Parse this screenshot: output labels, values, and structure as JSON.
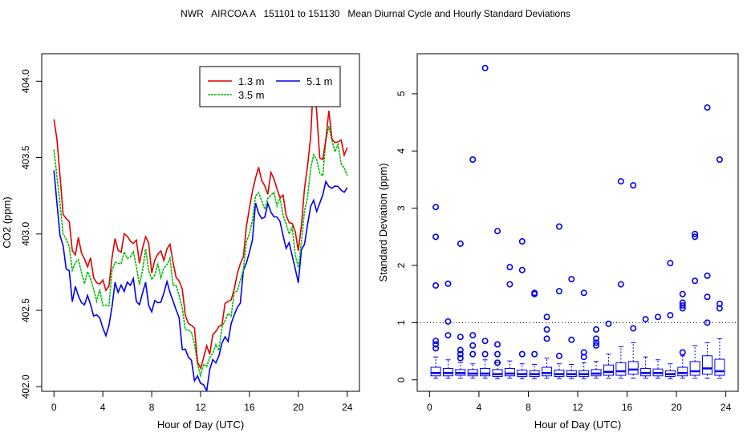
{
  "title": "NWR   AIRCOA A   151101 to 151130   Mean Diurnal Cycle and Hourly Standard Deviations",
  "colors": {
    "red": "#e00000",
    "green": "#00bb00",
    "blue": "#0000ee",
    "axis": "#000000"
  },
  "chart_data": [
    {
      "type": "line",
      "title": "",
      "xlabel": "Hour of Day (UTC)",
      "ylabel": "CO2 (ppm)",
      "xlim": [
        -1,
        25
      ],
      "ylim": [
        401.97,
        404.18
      ],
      "xticks": [
        "0",
        "4",
        "8",
        "12",
        "16",
        "20",
        "24"
      ],
      "yticks": [
        "402.0",
        "402.5",
        "403.0",
        "403.5",
        "404.0"
      ],
      "legend": {
        "position": "top-right",
        "entries": [
          "1.3 m",
          "3.5 m",
          "5.1 m"
        ]
      },
      "series": [
        {
          "name": "1.3 m",
          "color": "#e00000",
          "knots": [
            [
              0,
              403.75
            ],
            [
              0.3,
              403.55
            ],
            [
              0.6,
              403.3
            ],
            [
              0.9,
              403.05
            ],
            [
              1.2,
              403.1
            ],
            [
              1.5,
              402.9
            ],
            [
              2,
              402.92
            ],
            [
              2.5,
              402.85
            ],
            [
              3,
              402.78
            ],
            [
              3.5,
              402.7
            ],
            [
              4,
              402.65
            ],
            [
              4.5,
              402.68
            ],
            [
              5,
              402.95
            ],
            [
              5.5,
              402.9
            ],
            [
              6,
              403.0
            ],
            [
              6.5,
              402.95
            ],
            [
              7,
              402.85
            ],
            [
              7.5,
              402.98
            ],
            [
              8,
              402.8
            ],
            [
              8.5,
              402.85
            ],
            [
              9,
              402.88
            ],
            [
              9.5,
              402.9
            ],
            [
              10,
              402.75
            ],
            [
              10.5,
              402.6
            ],
            [
              11,
              402.42
            ],
            [
              11.5,
              402.35
            ],
            [
              12,
              402.1
            ],
            [
              12.5,
              402.25
            ],
            [
              13,
              402.3
            ],
            [
              13.5,
              402.4
            ],
            [
              14,
              402.5
            ],
            [
              14.5,
              402.6
            ],
            [
              15,
              402.7
            ],
            [
              15.5,
              402.9
            ],
            [
              16,
              403.15
            ],
            [
              16.5,
              403.42
            ],
            [
              17,
              403.35
            ],
            [
              17.5,
              403.3
            ],
            [
              18,
              403.38
            ],
            [
              18.5,
              403.25
            ],
            [
              19,
              403.15
            ],
            [
              19.5,
              403.05
            ],
            [
              20,
              402.92
            ],
            [
              20.5,
              403.25
            ],
            [
              21,
              403.65
            ],
            [
              21.3,
              404.12
            ],
            [
              21.6,
              403.55
            ],
            [
              22,
              403.5
            ],
            [
              22.5,
              403.75
            ],
            [
              23,
              403.6
            ],
            [
              23.5,
              403.58
            ],
            [
              24,
              403.56
            ]
          ],
          "x": [],
          "values": []
        },
        {
          "name": "3.5 m",
          "color": "#00bb00",
          "knots": [
            [
              0,
              403.5
            ],
            [
              0.3,
              403.35
            ],
            [
              0.6,
              403.15
            ],
            [
              0.9,
              402.9
            ],
            [
              1.2,
              402.95
            ],
            [
              1.5,
              402.8
            ],
            [
              2,
              402.8
            ],
            [
              2.5,
              402.72
            ],
            [
              3,
              402.7
            ],
            [
              3.5,
              402.6
            ],
            [
              4,
              402.55
            ],
            [
              4.5,
              402.55
            ],
            [
              5,
              402.85
            ],
            [
              5.5,
              402.8
            ],
            [
              6,
              402.88
            ],
            [
              6.5,
              402.85
            ],
            [
              7,
              402.7
            ],
            [
              7.5,
              402.85
            ],
            [
              8,
              402.72
            ],
            [
              8.5,
              402.75
            ],
            [
              9,
              402.78
            ],
            [
              9.5,
              402.8
            ],
            [
              10,
              402.65
            ],
            [
              10.5,
              402.5
            ],
            [
              11,
              402.35
            ],
            [
              11.5,
              402.3
            ],
            [
              12,
              402.05
            ],
            [
              12.5,
              402.18
            ],
            [
              13,
              402.2
            ],
            [
              13.5,
              402.3
            ],
            [
              14,
              402.42
            ],
            [
              14.5,
              402.52
            ],
            [
              15,
              402.62
            ],
            [
              15.5,
              402.8
            ],
            [
              16,
              403.0
            ],
            [
              16.5,
              403.25
            ],
            [
              17,
              403.22
            ],
            [
              17.5,
              403.2
            ],
            [
              18,
              403.28
            ],
            [
              18.5,
              403.18
            ],
            [
              19,
              403.08
            ],
            [
              19.5,
              402.98
            ],
            [
              20,
              402.8
            ],
            [
              20.5,
              403.1
            ],
            [
              21,
              403.45
            ],
            [
              21.3,
              403.5
            ],
            [
              21.6,
              403.45
            ],
            [
              22,
              403.4
            ],
            [
              22.5,
              403.72
            ],
            [
              23,
              403.55
            ],
            [
              23.5,
              403.5
            ],
            [
              24,
              403.38
            ]
          ],
          "x": [],
          "values": []
        },
        {
          "name": "5.1 m",
          "color": "#0000ee",
          "knots": [
            [
              0,
              403.4
            ],
            [
              0.3,
              403.15
            ],
            [
              0.6,
              403.0
            ],
            [
              0.9,
              402.75
            ],
            [
              1.2,
              402.8
            ],
            [
              1.5,
              402.6
            ],
            [
              2,
              402.6
            ],
            [
              2.5,
              402.55
            ],
            [
              3,
              402.55
            ],
            [
              3.5,
              402.45
            ],
            [
              4,
              402.4
            ],
            [
              4.5,
              402.35
            ],
            [
              5,
              402.7
            ],
            [
              5.5,
              402.6
            ],
            [
              6,
              402.7
            ],
            [
              6.5,
              402.65
            ],
            [
              7,
              402.55
            ],
            [
              7.5,
              402.65
            ],
            [
              8,
              402.5
            ],
            [
              8.5,
              402.55
            ],
            [
              9,
              402.62
            ],
            [
              9.5,
              402.65
            ],
            [
              10,
              402.5
            ],
            [
              10.5,
              402.3
            ],
            [
              11,
              402.18
            ],
            [
              11.5,
              402.1
            ],
            [
              12,
              402.0
            ],
            [
              12.5,
              402.02
            ],
            [
              13,
              402.15
            ],
            [
              13.5,
              402.22
            ],
            [
              14,
              402.3
            ],
            [
              14.5,
              402.4
            ],
            [
              15,
              402.5
            ],
            [
              15.5,
              402.72
            ],
            [
              16,
              402.88
            ],
            [
              16.5,
              403.15
            ],
            [
              17,
              403.12
            ],
            [
              17.5,
              403.15
            ],
            [
              18,
              403.15
            ],
            [
              18.5,
              403.05
            ],
            [
              19,
              402.95
            ],
            [
              19.5,
              402.85
            ],
            [
              20,
              402.72
            ],
            [
              20.5,
              402.95
            ],
            [
              21,
              403.2
            ],
            [
              21.3,
              403.15
            ],
            [
              21.6,
              403.2
            ],
            [
              22,
              403.25
            ],
            [
              22.5,
              403.35
            ],
            [
              23,
              403.28
            ],
            [
              23.5,
              403.32
            ],
            [
              24,
              403.25
            ]
          ],
          "x": [],
          "values": []
        }
      ]
    },
    {
      "type": "box",
      "title": "",
      "xlabel": "Hour of Day (UTC)",
      "ylabel": "Standard Deviation (ppm)",
      "xlim": [
        -1,
        25
      ],
      "ylim": [
        -0.2,
        5.7
      ],
      "xticks": [
        "0",
        "4",
        "8",
        "12",
        "16",
        "20",
        "24"
      ],
      "yticks": [
        "0",
        "1",
        "2",
        "3",
        "4",
        "5"
      ],
      "reference_line": 1,
      "box_color": "#0000ee",
      "boxes": [
        {
          "x": 0.5,
          "q1": 0.07,
          "median": 0.12,
          "q3": 0.22,
          "whisker_low": 0.03,
          "whisker_high": 0.4,
          "outliers": [
            0.55,
            0.62,
            0.68,
            1.65,
            2.5,
            3.02
          ]
        },
        {
          "x": 1.5,
          "q1": 0.07,
          "median": 0.12,
          "q3": 0.2,
          "whisker_low": 0.03,
          "whisker_high": 0.35,
          "outliers": [
            0.78,
            1.02,
            1.68
          ]
        },
        {
          "x": 2.5,
          "q1": 0.08,
          "median": 0.12,
          "q3": 0.18,
          "whisker_low": 0.03,
          "whisker_high": 0.3,
          "outliers": [
            0.38,
            0.45,
            0.52,
            0.75,
            2.38
          ]
        },
        {
          "x": 3.5,
          "q1": 0.07,
          "median": 0.11,
          "q3": 0.18,
          "whisker_low": 0.03,
          "whisker_high": 0.28,
          "outliers": [
            0.45,
            0.6,
            0.78,
            3.85
          ]
        },
        {
          "x": 4.5,
          "q1": 0.07,
          "median": 0.11,
          "q3": 0.2,
          "whisker_low": 0.03,
          "whisker_high": 0.35,
          "outliers": [
            0.45,
            0.68,
            5.45
          ]
        },
        {
          "x": 5.5,
          "q1": 0.06,
          "median": 0.1,
          "q3": 0.18,
          "whisker_low": 0.02,
          "whisker_high": 0.3,
          "outliers": [
            0.3,
            0.45,
            0.62,
            2.6
          ]
        },
        {
          "x": 6.5,
          "q1": 0.07,
          "median": 0.11,
          "q3": 0.2,
          "whisker_low": 0.03,
          "whisker_high": 0.33,
          "outliers": [
            1.67,
            1.97
          ]
        },
        {
          "x": 7.5,
          "q1": 0.06,
          "median": 0.1,
          "q3": 0.17,
          "whisker_low": 0.02,
          "whisker_high": 0.28,
          "outliers": [
            0.45,
            1.92,
            2.42
          ]
        },
        {
          "x": 8.5,
          "q1": 0.06,
          "median": 0.1,
          "q3": 0.16,
          "whisker_low": 0.02,
          "whisker_high": 0.27,
          "outliers": [
            0.45,
            1.5,
            1.52
          ]
        },
        {
          "x": 9.5,
          "q1": 0.07,
          "median": 0.12,
          "q3": 0.22,
          "whisker_low": 0.03,
          "whisker_high": 0.38,
          "outliers": [
            0.72,
            0.88,
            1.1
          ]
        },
        {
          "x": 10.5,
          "q1": 0.06,
          "median": 0.1,
          "q3": 0.17,
          "whisker_low": 0.02,
          "whisker_high": 0.28,
          "outliers": [
            0.42,
            1.55,
            2.68
          ]
        },
        {
          "x": 11.5,
          "q1": 0.06,
          "median": 0.1,
          "q3": 0.16,
          "whisker_low": 0.02,
          "whisker_high": 0.27,
          "outliers": [
            0.7,
            1.76
          ]
        },
        {
          "x": 12.5,
          "q1": 0.06,
          "median": 0.1,
          "q3": 0.16,
          "whisker_low": 0.02,
          "whisker_high": 0.3,
          "outliers": [
            0.4,
            0.48,
            1.52
          ]
        },
        {
          "x": 13.5,
          "q1": 0.07,
          "median": 0.11,
          "q3": 0.18,
          "whisker_low": 0.03,
          "whisker_high": 0.32,
          "outliers": [
            0.6,
            0.65,
            0.72,
            0.88
          ]
        },
        {
          "x": 14.5,
          "q1": 0.08,
          "median": 0.14,
          "q3": 0.26,
          "whisker_low": 0.03,
          "whisker_high": 0.45,
          "outliers": [
            0.98
          ]
        },
        {
          "x": 15.5,
          "q1": 0.08,
          "median": 0.15,
          "q3": 0.3,
          "whisker_low": 0.03,
          "whisker_high": 0.58,
          "outliers": [
            1.67,
            3.47
          ]
        },
        {
          "x": 16.5,
          "q1": 0.1,
          "median": 0.18,
          "q3": 0.32,
          "whisker_low": 0.03,
          "whisker_high": 0.65,
          "outliers": [
            0.9,
            3.4
          ]
        },
        {
          "x": 17.5,
          "q1": 0.07,
          "median": 0.12,
          "q3": 0.2,
          "whisker_low": 0.03,
          "whisker_high": 0.4,
          "outliers": [
            1.06
          ]
        },
        {
          "x": 18.5,
          "q1": 0.07,
          "median": 0.12,
          "q3": 0.19,
          "whisker_low": 0.03,
          "whisker_high": 0.35,
          "outliers": [
            1.1
          ]
        },
        {
          "x": 19.5,
          "q1": 0.06,
          "median": 0.1,
          "q3": 0.16,
          "whisker_low": 0.02,
          "whisker_high": 0.28,
          "outliers": [
            1.13,
            2.04
          ]
        },
        {
          "x": 20.5,
          "q1": 0.07,
          "median": 0.12,
          "q3": 0.22,
          "whisker_low": 0.03,
          "whisker_high": 0.42,
          "outliers": [
            0.48,
            1.25,
            1.3,
            1.35,
            1.5
          ]
        },
        {
          "x": 21.5,
          "q1": 0.08,
          "median": 0.15,
          "q3": 0.32,
          "whisker_low": 0.03,
          "whisker_high": 0.6,
          "outliers": [
            1.73,
            2.5,
            2.55
          ]
        },
        {
          "x": 22.5,
          "q1": 0.1,
          "median": 0.2,
          "q3": 0.42,
          "whisker_low": 0.03,
          "whisker_high": 0.65,
          "outliers": [
            1.0,
            1.45,
            1.82,
            4.76
          ]
        },
        {
          "x": 23.5,
          "q1": 0.08,
          "median": 0.15,
          "q3": 0.36,
          "whisker_low": 0.03,
          "whisker_high": 0.72,
          "outliers": [
            1.25,
            1.33,
            3.85
          ]
        }
      ]
    }
  ]
}
